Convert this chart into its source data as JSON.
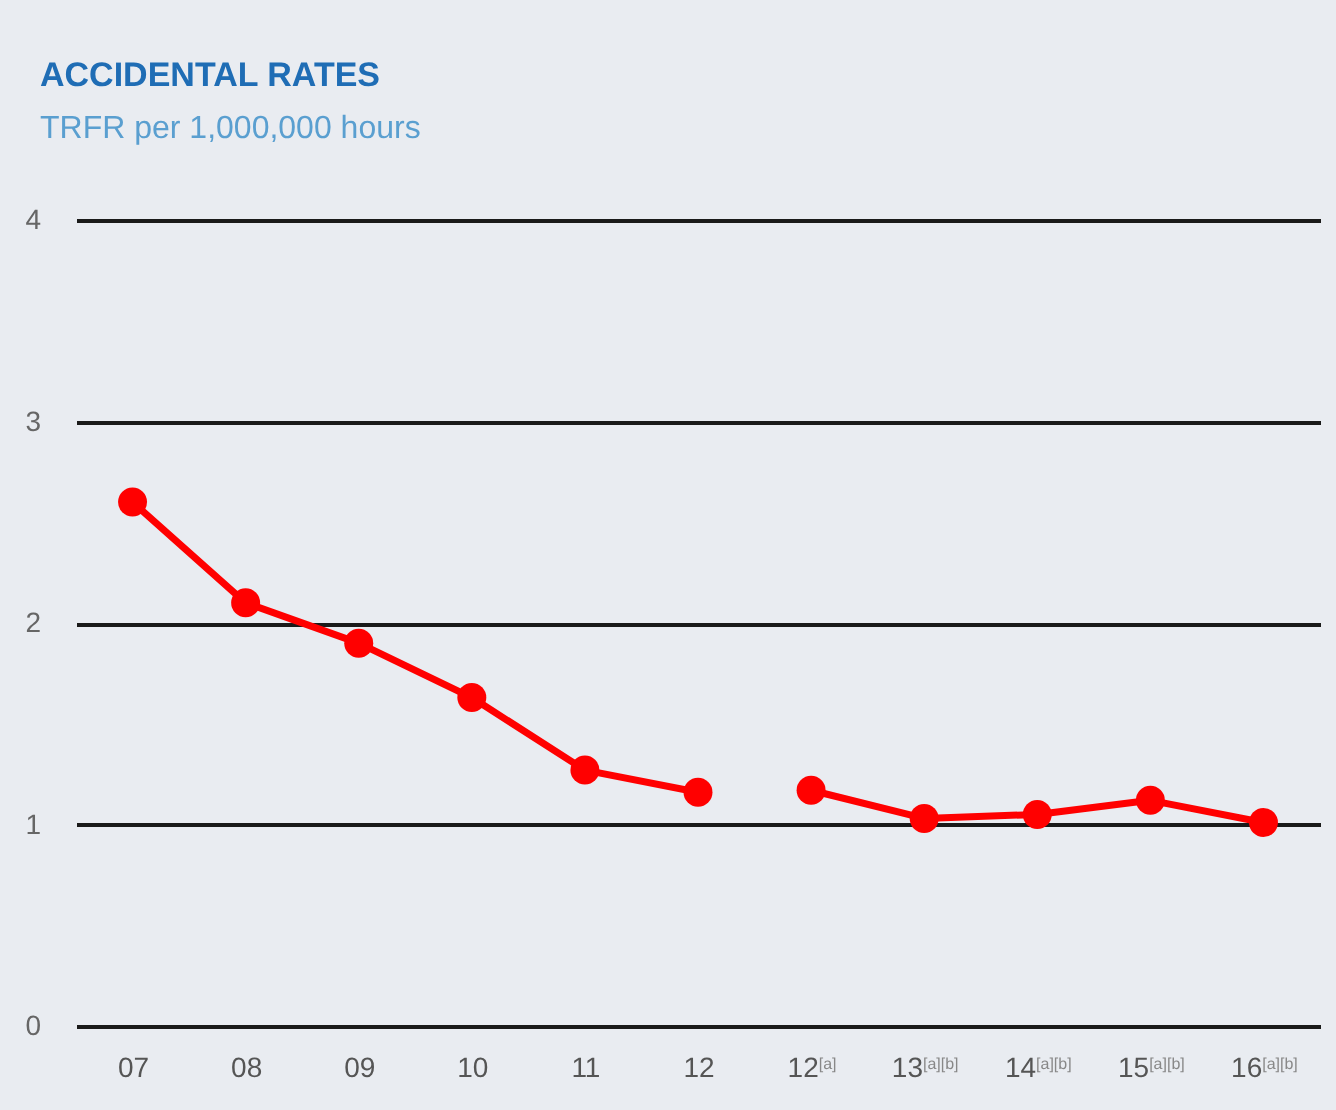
{
  "chart_data": {
    "type": "line",
    "title": "ACCIDENTAL RATES",
    "subtitle": "TRFR per 1,000,000 hours",
    "categories": [
      "07",
      "08",
      "09",
      "10",
      "11",
      "12",
      "12$^{[a]}$",
      "13$^{[a][b]}$",
      "14$^{[a][b]}$",
      "15$^{[a][b]}$",
      "16$^{[a][b]}$"
    ],
    "series": [
      {
        "color": "#ff0000",
        "values": [
          2.6,
          2.1,
          1.9,
          1.63,
          1.27,
          1.16,
          null,
          null,
          null,
          null,
          null
        ]
      },
      {
        "color": "#ff0000",
        "values": [
          null,
          null,
          null,
          null,
          null,
          null,
          1.17,
          1.03,
          1.05,
          1.12,
          1.01
        ]
      }
    ],
    "ylim": [
      0,
      4
    ],
    "yticks": [
      0,
      1,
      2,
      3,
      4
    ],
    "grid": "y",
    "legend": false,
    "marker": "circle",
    "line_style": "solid"
  }
}
